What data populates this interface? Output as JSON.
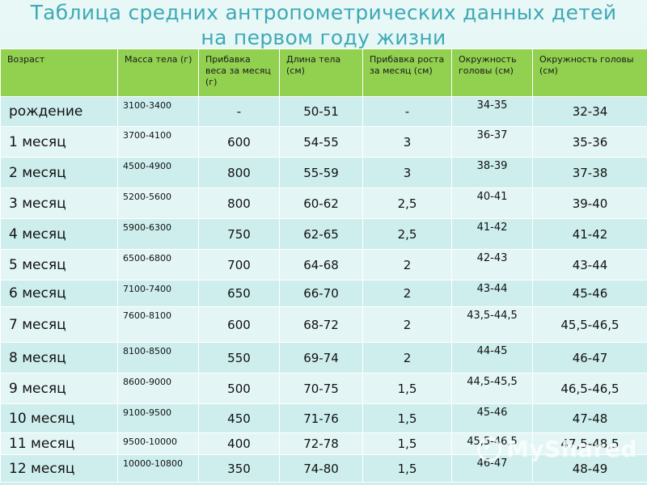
{
  "title_lines": [
    "Таблица средних антропометрических данных детей",
    "на первом году жизни"
  ],
  "headers": [
    "Возраст",
    "Масса тела (г)",
    "Прибавка веса за месяц (г)",
    "Длина тела (см)",
    "Прибавка роста за месяц (см)",
    "Окружность головы (см)",
    "Окружность головы (см)"
  ],
  "rows": [
    [
      "рождение",
      "3100-3400",
      "-",
      "50-51",
      "-",
      "34-35",
      "32-34"
    ],
    [
      "1 месяц",
      "3700-4100",
      "600",
      "54-55",
      "3",
      "36-37",
      "35-36"
    ],
    [
      "2 месяц",
      "4500-4900",
      "800",
      "55-59",
      "3",
      "38-39",
      "37-38"
    ],
    [
      "3 месяц",
      "5200-5600",
      "800",
      "60-62",
      "2,5",
      "40-41",
      "39-40"
    ],
    [
      "4 месяц",
      "5900-6300",
      "750",
      "62-65",
      "2,5",
      "41-42",
      "41-42"
    ],
    [
      "5 месяц",
      "6500-6800",
      "700",
      "64-68",
      "2",
      "42-43",
      "43-44"
    ],
    [
      "6 месяц",
      "7100-7400",
      "650",
      "66-70",
      "2",
      "43-44",
      "45-46"
    ],
    [
      "7 месяц",
      "7600-8100",
      "600",
      "68-72",
      "2",
      "43,5-44,5",
      "45,5-46,5"
    ],
    [
      "8 месяц",
      "8100-8500",
      "550",
      "69-74",
      "2",
      "44-45",
      "46-47"
    ],
    [
      "9 месяц",
      "8600-9000",
      "500",
      "70-75",
      "1,5",
      "44,5-45,5",
      "46,5-46,5"
    ],
    [
      "10 месяц",
      "9100-9500",
      "450",
      "71-76",
      "1,5",
      "45-46",
      "47-48"
    ],
    [
      "11 месяц",
      "9500-10000",
      "400",
      "72-78",
      "1,5",
      "45,5-46,5",
      "47,5-48,5"
    ],
    [
      "12 месяц",
      "10000-10800",
      "350",
      "74-80",
      "1,5",
      "46-47",
      "48-49"
    ]
  ],
  "watermark": "MyShared",
  "colors": {
    "header_bg": "#92d050",
    "title": "#3fa9b6",
    "row_a": "#cdeeed",
    "row_b": "#e3f6f5"
  }
}
